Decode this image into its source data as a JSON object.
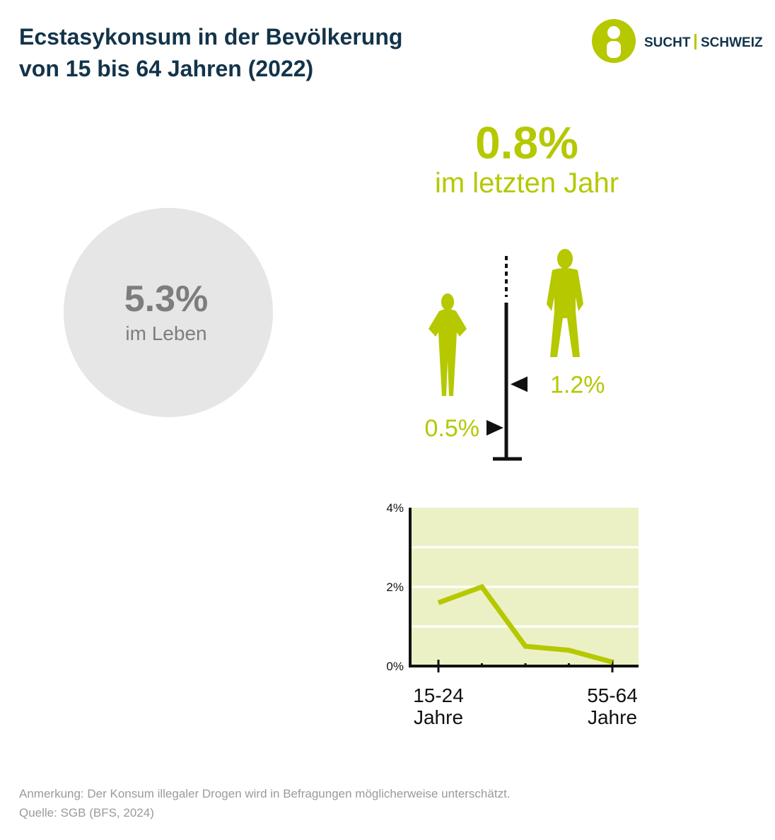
{
  "header": {
    "title_lines": [
      "Ecstasykonsum in der Bevölkerung",
      "von 15 bis 64 Jahren (2022)"
    ]
  },
  "logo": {
    "left": "SUCHT",
    "right": "SCHWEIZ"
  },
  "lifetime": {
    "value": 5.3,
    "value_label": "5.3%",
    "caption": "im Leben"
  },
  "last_year": {
    "value": 0.8,
    "value_label": "0.8%",
    "caption": "im letzten Jahr"
  },
  "last_year_by_sex": {
    "values": [
      0.5,
      1.2
    ],
    "value_labels": [
      "0.5%",
      "1.2%"
    ]
  },
  "chart_data": {
    "type": "line",
    "categories": [
      "15-24 Jahre",
      null,
      null,
      null,
      "55-64 Jahre"
    ],
    "values": [
      1.6,
      2.0,
      0.5,
      0.4,
      0.1
    ],
    "color": "#b5c800",
    "ylim": [
      0,
      4
    ],
    "yticks": [
      {
        "value": 0,
        "label": "0%"
      },
      {
        "value": 2,
        "label": "2%"
      },
      {
        "value": 4,
        "label": "4%"
      }
    ],
    "yminor": [
      1,
      3
    ],
    "grid": true
  },
  "footer": {
    "note": "Anmerkung: Der Konsum illegaler Drogen wird in Befragungen möglicherweise unterschätzt.",
    "source": "Quelle: SGB (BFS, 2024)"
  }
}
